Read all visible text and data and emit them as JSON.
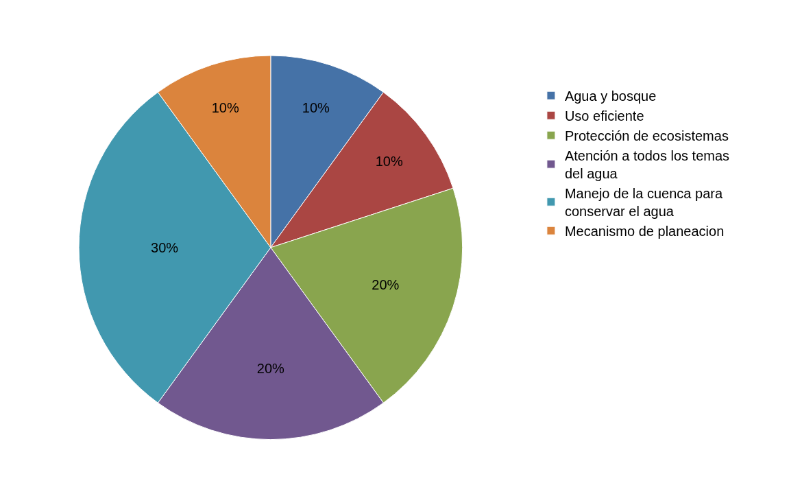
{
  "chart_data": {
    "type": "pie",
    "categories": [
      "Agua y bosque",
      "Uso eficiente",
      "Protección de ecosistemas",
      "Atención a todos los temas del agua",
      "Manejo de la cuenca para conservar el agua",
      "Mecanismo de planeacion"
    ],
    "values": [
      10,
      10,
      20,
      20,
      30,
      10
    ],
    "value_labels": [
      "10%",
      "10%",
      "20%",
      "20%",
      "30%",
      "10%"
    ],
    "colors": [
      "#4572a7",
      "#aa4643",
      "#89a54e",
      "#71588f",
      "#4198af",
      "#db843d"
    ],
    "legend": "right"
  }
}
